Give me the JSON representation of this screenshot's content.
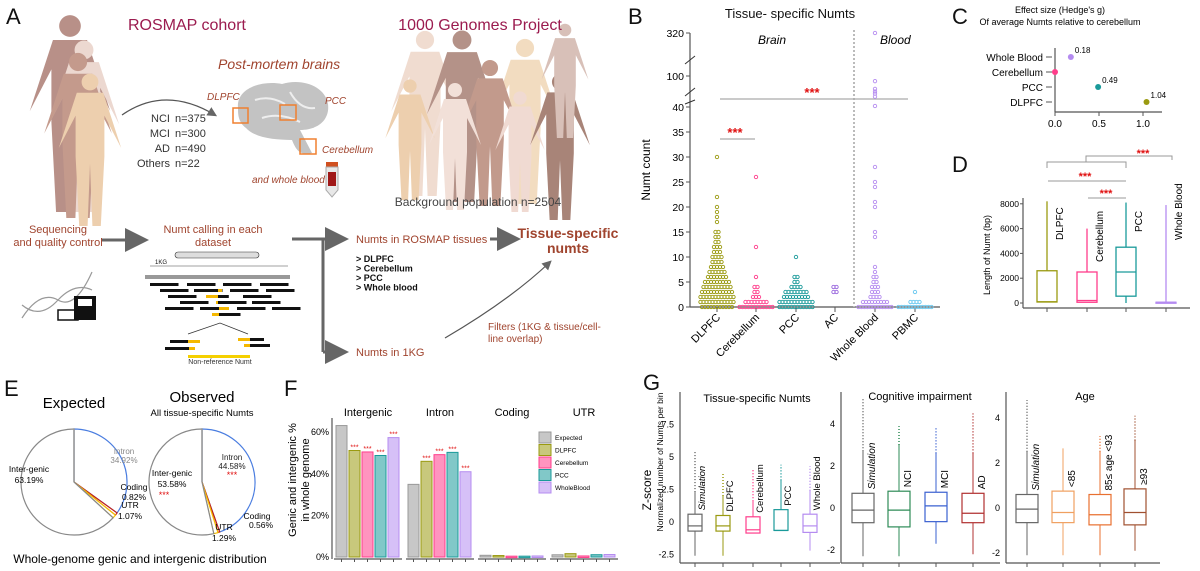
{
  "panel_labels": [
    "A",
    "B",
    "C",
    "D",
    "E",
    "F",
    "G"
  ],
  "panel_a": {
    "rosmap_title": "ROSMAP cohort",
    "kg_title": "1000 Genomes Project",
    "postmortem": "Post-mortem brains",
    "regions": [
      "DLPFC",
      "PCC",
      "Cerebellum"
    ],
    "blood": "and whole blood",
    "cohort": [
      {
        "group": "NCI",
        "n": "n=375"
      },
      {
        "group": "MCI",
        "n": "n=300"
      },
      {
        "group": "AD",
        "n": "n=490"
      },
      {
        "group": "Others",
        "n": "n=22"
      }
    ],
    "background": "Background population n=2504",
    "seq_qc": [
      "Sequencing",
      "and quality control"
    ],
    "numt_calling": [
      "Numt calling in each",
      "dataset"
    ],
    "kg_label": "1KG",
    "nonref": "Non-reference Numt",
    "rosmap_tissues": "Numts in ROSMAP tissues",
    "tissue_list": [
      "> DLPFC",
      "> Cerebellum",
      "> PCC",
      "> Whole blood"
    ],
    "tissue_specific": [
      "Tissue-specific",
      "numts"
    ],
    "filters": [
      "Filters (1KG & tissue/cell-",
      "line overlap)"
    ],
    "numts_1kg": "Numts in 1KG",
    "colors": {
      "title": "#9b1b4f",
      "text": "#a0442e",
      "region_box": "#f08030"
    }
  },
  "chart_data": [
    {
      "panel": "B",
      "type": "scatter",
      "title": "Tissue- specific Numts",
      "ylabel": "Numt count",
      "group_labels": [
        "Brain",
        "Blood"
      ],
      "yticks": [
        0,
        5,
        10,
        15,
        20,
        25,
        30,
        35,
        40,
        100,
        320
      ],
      "y_axis_breaks": [
        [
          40,
          100
        ],
        [
          100,
          320
        ]
      ],
      "significance": [
        "***",
        "***"
      ],
      "categories": [
        "DLPFC",
        "Cerebellum",
        "PCC",
        "AC",
        "Whole Blood",
        "PBMC"
      ],
      "colors": [
        "#9a9a10",
        "#ff3d8b",
        "#1a9a9a",
        "#9966dd",
        "#b58cf0",
        "#69c8f0"
      ],
      "value_counts": [
        [
          [
            0,
            11
          ],
          [
            1,
            12
          ],
          [
            2,
            12
          ],
          [
            3,
            11
          ],
          [
            4,
            10
          ],
          [
            5,
            9
          ],
          [
            6,
            7
          ],
          [
            7,
            6
          ],
          [
            8,
            5
          ],
          [
            9,
            4
          ],
          [
            10,
            4
          ],
          [
            11,
            3
          ],
          [
            12,
            3
          ],
          [
            13,
            2
          ],
          [
            14,
            2
          ],
          [
            15,
            2
          ],
          [
            17,
            1
          ],
          [
            18,
            1
          ],
          [
            19,
            1
          ],
          [
            20,
            1
          ],
          [
            22,
            1
          ],
          [
            30,
            1
          ]
        ],
        [
          [
            0,
            12
          ],
          [
            1,
            8
          ],
          [
            2,
            3
          ],
          [
            3,
            2
          ],
          [
            4,
            2
          ],
          [
            6,
            1
          ],
          [
            12,
            1
          ],
          [
            26,
            1
          ]
        ],
        [
          [
            0,
            12
          ],
          [
            1,
            12
          ],
          [
            2,
            9
          ],
          [
            3,
            8
          ],
          [
            4,
            4
          ],
          [
            5,
            2
          ],
          [
            6,
            2
          ],
          [
            10,
            1
          ]
        ],
        [
          [
            3,
            2
          ],
          [
            4,
            2
          ]
        ],
        [
          [
            0,
            12
          ],
          [
            1,
            9
          ],
          [
            2,
            4
          ],
          [
            3,
            3
          ],
          [
            4,
            3
          ],
          [
            5,
            2
          ],
          [
            6,
            2
          ],
          [
            7,
            1
          ],
          [
            8,
            1
          ],
          [
            14,
            1
          ],
          [
            15,
            1
          ],
          [
            20,
            1
          ],
          [
            21,
            1
          ],
          [
            24,
            1
          ],
          [
            25,
            1
          ],
          [
            28,
            1
          ],
          [
            42,
            1
          ],
          [
            60,
            1
          ],
          [
            66,
            1
          ],
          [
            70,
            1
          ],
          [
            75,
            1
          ],
          [
            90,
            1
          ],
          [
            320,
            1
          ]
        ],
        [
          [
            0,
            12
          ],
          [
            1,
            4
          ],
          [
            3,
            1
          ]
        ]
      ]
    },
    {
      "panel": "C",
      "type": "scatter",
      "title": [
        "Effect size (Hedge's g)",
        "Of average Numts relative to cerebellum"
      ],
      "categories": [
        "Whole Blood",
        "Cerebellum",
        "PCC",
        "DLPFC"
      ],
      "values": [
        0.18,
        0,
        0.49,
        1.04
      ],
      "value_labels": [
        "0.18",
        "",
        "0.49",
        "1.04"
      ],
      "colors": [
        "#b58cf0",
        "#ff3d8b",
        "#1a9a9a",
        "#9a9a10"
      ],
      "xticks": [
        "0.0",
        "0.5",
        "1.0"
      ],
      "xlim": [
        0,
        1.2
      ]
    },
    {
      "panel": "D",
      "type": "box",
      "ylabel": "Length of Numt (bp)",
      "categories": [
        "DLPFC",
        "Cerebellum",
        "PCC",
        "Whole Blood"
      ],
      "colors": [
        "#9a9a10",
        "#ff3d8b",
        "#1a9a9a",
        "#b58cf0"
      ],
      "boxes": [
        {
          "low": 50,
          "q1": 80,
          "median": 100,
          "q3": 2600,
          "high": 8200
        },
        {
          "low": 50,
          "q1": 60,
          "median": 200,
          "q3": 2500,
          "high": 6000
        },
        {
          "low": 0,
          "q1": 550,
          "median": 2500,
          "q3": 4500,
          "high": 8100
        },
        {
          "low": 50,
          "q1": 50,
          "median": 60,
          "q3": 60,
          "high": 7900
        }
      ],
      "yticks": [
        0,
        2000,
        4000,
        6000,
        8000
      ],
      "ylim": [
        0,
        8500
      ],
      "significance": [
        "***",
        "***",
        "***"
      ]
    },
    {
      "panel": "E",
      "type": "pie",
      "title": "Whole-genome genic and intergenic distribution",
      "pies": [
        {
          "title": "Expected",
          "subtitle": "",
          "slices": [
            {
              "name": "Intron",
              "label": "34.92%",
              "value": 34.92,
              "color": "#4a7de0"
            },
            {
              "name": "Coding",
              "label": "0.82%",
              "value": 0.82,
              "color": "#c0201a"
            },
            {
              "name": "UTR",
              "label": "1.07%",
              "value": 1.07,
              "color": "#f5c000"
            },
            {
              "name": "Inter-genic",
              "label": "63.19%",
              "value": 63.19,
              "color": "#888888"
            }
          ]
        },
        {
          "title": "Observed",
          "subtitle": "All tissue-specific Numts",
          "slices": [
            {
              "name": "Intron",
              "label": "44.58%",
              "value": 44.58,
              "color": "#4a7de0",
              "sig": "***"
            },
            {
              "name": "Coding",
              "label": "0.56%",
              "value": 0.56,
              "color": "#c0201a"
            },
            {
              "name": "UTR",
              "label": "1.29%",
              "value": 1.29,
              "color": "#f5c000"
            },
            {
              "name": "Inter-genic",
              "label": "53.58%",
              "value": 53.58,
              "color": "#888888",
              "sig": "***"
            }
          ]
        }
      ]
    },
    {
      "panel": "F",
      "type": "bar",
      "ylabel": [
        "Genic and intergenic %",
        "in whole genome"
      ],
      "groups": [
        "Intergenic",
        "Intron",
        "Coding",
        "UTR"
      ],
      "yticks": [
        "0%",
        "20%",
        "40%",
        "60%"
      ],
      "ylim": [
        0,
        65
      ],
      "series": [
        {
          "name": "Expected",
          "values": [
            63.19,
            34.92,
            0.82,
            1.07
          ],
          "color": "#999999",
          "sig": [
            "",
            "",
            "",
            ""
          ]
        },
        {
          "name": "DLPFC",
          "values": [
            51.2,
            46.0,
            0.7,
            1.6
          ],
          "color": "#9a9a10",
          "sig": [
            "***",
            "***",
            "",
            ""
          ]
        },
        {
          "name": "Cerebellum",
          "values": [
            50.5,
            49.2,
            0.4,
            0.5
          ],
          "color": "#ff3d8b",
          "sig": [
            "***",
            "***",
            "",
            ""
          ]
        },
        {
          "name": "PCC",
          "values": [
            48.8,
            50.3,
            0.4,
            1.1
          ],
          "color": "#1a9a9a",
          "sig": [
            "***",
            "***",
            "",
            ""
          ]
        },
        {
          "name": "WholeBlood",
          "values": [
            57.4,
            41.0,
            0.5,
            1.2
          ],
          "color": "#b58cf0",
          "sig": [
            "***",
            "***",
            "",
            ""
          ]
        }
      ]
    },
    {
      "panel": "G",
      "type": "box",
      "ylabel": "Z-score",
      "ylabel2": "Normalized number of Numts per bin",
      "subplots": [
        {
          "title": "Tissue-specific Numts",
          "yticks": [
            "-2.5",
            "0",
            "2.5",
            "5",
            "7.5"
          ],
          "ytick_values": [
            -2.5,
            0,
            2.5,
            5,
            7.5
          ],
          "categories": [
            "Simulation",
            "DLPFC",
            "Cerebellum",
            "PCC",
            "Whole Blood"
          ],
          "colors": [
            "#666666",
            "#9a9a10",
            "#ff3d8b",
            "#1a9a9a",
            "#b58cf0"
          ],
          "boxes": [
            {
              "low": -2.6,
              "q1": -0.7,
              "median": -0.3,
              "q3": 0.6,
              "high": 2.3,
              "outmax": 5.4
            },
            {
              "low": -2.6,
              "q1": -0.7,
              "median": -0.3,
              "q3": 0.5,
              "high": 2.0,
              "outmax": 3.7
            },
            {
              "low": -0.85,
              "q1": -0.85,
              "median": -0.6,
              "q3": 0.4,
              "high": 1.6,
              "outmax": 4.0
            },
            {
              "low": -0.65,
              "q1": -0.65,
              "median": -0.65,
              "q3": 0.95,
              "high": 3.2,
              "outmax": 4.4
            },
            {
              "low": -2.2,
              "q1": -0.8,
              "median": -0.3,
              "q3": 0.6,
              "high": 2.4,
              "outmax": 4.3
            }
          ]
        },
        {
          "title": "Cognitive impairment",
          "yticks": [
            "-2",
            "0",
            "2",
            "4"
          ],
          "ytick_values": [
            -2,
            0,
            2,
            4
          ],
          "categories": [
            "Simulation",
            "NCI",
            "MCI",
            "AD"
          ],
          "colors": [
            "#666666",
            "#2e8b57",
            "#3a60d0",
            "#b03030"
          ],
          "boxes": [
            {
              "low": -2.3,
              "q1": -0.7,
              "median": -0.1,
              "q3": 0.7,
              "high": 2.7,
              "outmax": 5.2
            },
            {
              "low": -2.3,
              "q1": -0.9,
              "median": -0.1,
              "q3": 0.8,
              "high": 3.0,
              "outmax": 3.9
            },
            {
              "low": -1.7,
              "q1": -0.65,
              "median": 0.1,
              "q3": 0.75,
              "high": 2.6,
              "outmax": 3.8
            },
            {
              "low": -2.2,
              "q1": -0.7,
              "median": -0.25,
              "q3": 0.7,
              "high": 2.6,
              "outmax": 4.5
            }
          ]
        },
        {
          "title": "Age",
          "yticks": [
            "-2",
            "0",
            "2",
            "4"
          ],
          "ytick_values": [
            -2,
            0,
            2,
            4
          ],
          "categories": [
            "Simulation",
            "<85",
            "85≤ age <93",
            "≥93"
          ],
          "colors": [
            "#666666",
            "#f0a060",
            "#e87030",
            "#a05030"
          ],
          "boxes": [
            {
              "low": -2.1,
              "q1": -0.65,
              "median": -0.05,
              "q3": 0.6,
              "high": 2.5,
              "outmax": 4.8
            },
            {
              "low": -2.1,
              "q1": -0.65,
              "median": -0.2,
              "q3": 0.75,
              "high": 2.65,
              "outmax": 2.65
            },
            {
              "low": -2.1,
              "q1": -0.75,
              "median": -0.3,
              "q3": 0.6,
              "high": 2.5,
              "outmax": 3.2
            },
            {
              "low": -1.9,
              "q1": -0.75,
              "median": -0.2,
              "q3": 0.85,
              "high": 3.0,
              "outmax": 4.1
            }
          ]
        }
      ]
    }
  ]
}
